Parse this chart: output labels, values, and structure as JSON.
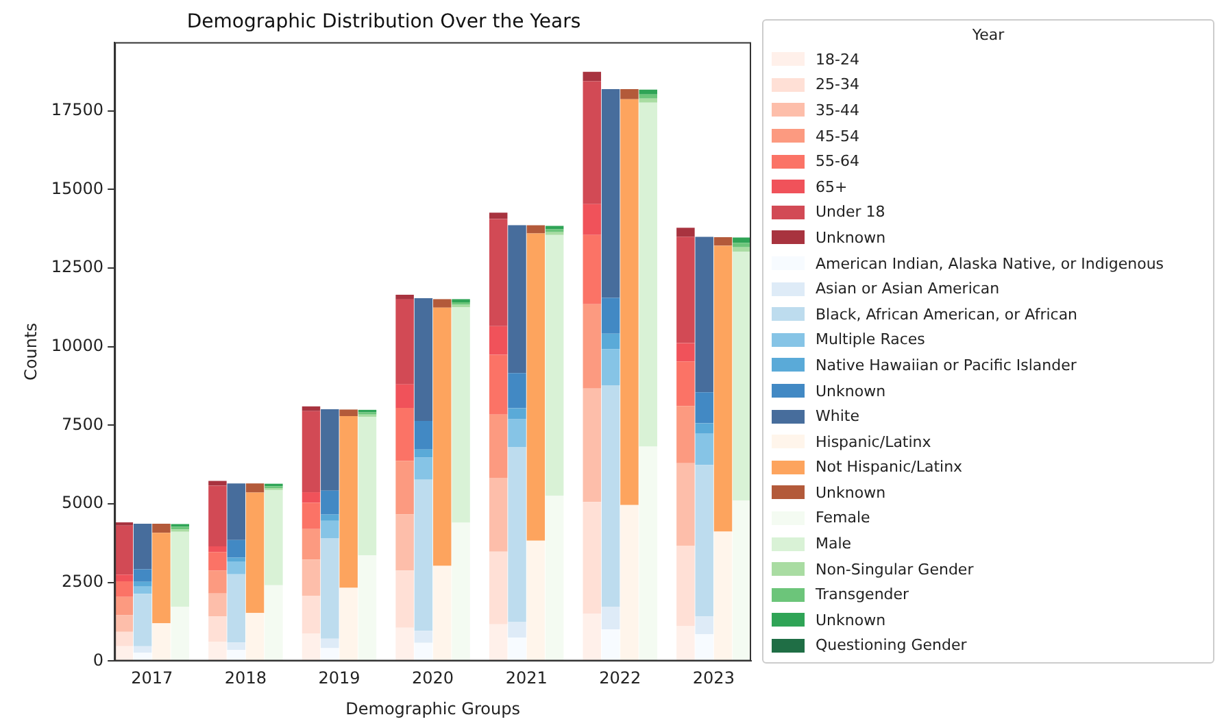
{
  "chart_data": {
    "type": "bar",
    "title": "Demographic Distribution Over the Years",
    "xlabel": "Demographic Groups",
    "ylabel": "Counts",
    "legend_title": "Year",
    "legend": "right",
    "grid": false,
    "stacked": true,
    "categories": [
      null,
      "2017",
      null,
      null,
      null,
      null,
      "2018",
      null,
      null,
      null,
      null,
      "2019",
      null,
      null,
      null,
      null,
      "2020",
      null,
      null,
      null,
      null,
      "2021",
      null,
      null,
      null,
      null,
      "2022",
      null,
      null,
      null,
      null,
      "2023",
      null,
      null
    ],
    "ylim": [
      0,
      19680
    ],
    "yticks": [
      0,
      2500,
      5000,
      7500,
      10000,
      12500,
      15000,
      17500
    ],
    "series": [
      {
        "name": "18-24",
        "color": "#fff0ea",
        "values": [
          470,
          null,
          null,
          null,
          null,
          620,
          null,
          null,
          null,
          null,
          880,
          null,
          null,
          null,
          null,
          1060,
          null,
          null,
          null,
          null,
          1170,
          null,
          null,
          null,
          null,
          1500,
          null,
          null,
          null,
          null,
          1120,
          null,
          null,
          null
        ]
      },
      {
        "name": "25-34",
        "color": "#ffe0d6",
        "values": [
          460,
          null,
          null,
          null,
          null,
          800,
          null,
          null,
          null,
          null,
          1200,
          null,
          null,
          null,
          null,
          1820,
          null,
          null,
          null,
          null,
          2310,
          null,
          null,
          null,
          null,
          3560,
          null,
          null,
          null,
          null,
          2550,
          null,
          null,
          null
        ]
      },
      {
        "name": "35-44",
        "color": "#fdbeaa",
        "values": [
          530,
          null,
          null,
          null,
          null,
          730,
          null,
          null,
          null,
          null,
          1150,
          null,
          null,
          null,
          null,
          1790,
          null,
          null,
          null,
          null,
          2350,
          null,
          null,
          null,
          null,
          3610,
          null,
          null,
          null,
          null,
          2620,
          null,
          null,
          null
        ]
      },
      {
        "name": "45-54",
        "color": "#fc9a80",
        "values": [
          580,
          null,
          null,
          null,
          null,
          730,
          null,
          null,
          null,
          null,
          970,
          null,
          null,
          null,
          null,
          1700,
          null,
          null,
          null,
          null,
          2010,
          null,
          null,
          null,
          null,
          2680,
          null,
          null,
          null,
          null,
          1820,
          null,
          null,
          null
        ]
      },
      {
        "name": "55-64",
        "color": "#fb7366",
        "values": [
          500,
          null,
          null,
          null,
          null,
          590,
          null,
          null,
          null,
          null,
          840,
          null,
          null,
          null,
          null,
          1680,
          null,
          null,
          null,
          null,
          1900,
          null,
          null,
          null,
          null,
          2200,
          null,
          null,
          null,
          null,
          1420,
          null,
          null,
          null
        ]
      },
      {
        "name": "65+",
        "color": "#f0525a",
        "values": [
          210,
          null,
          null,
          null,
          null,
          180,
          null,
          null,
          null,
          null,
          330,
          null,
          null,
          null,
          null,
          750,
          null,
          null,
          null,
          null,
          910,
          null,
          null,
          null,
          null,
          980,
          null,
          null,
          null,
          null,
          580,
          null,
          null,
          null
        ]
      },
      {
        "name": "Under 18",
        "color": "#d24a55",
        "values": [
          1560,
          null,
          null,
          null,
          null,
          1930,
          null,
          null,
          null,
          null,
          2580,
          null,
          null,
          null,
          null,
          2700,
          null,
          null,
          null,
          null,
          3410,
          null,
          null,
          null,
          null,
          3910,
          null,
          null,
          null,
          null,
          3380,
          null,
          null,
          null
        ]
      },
      {
        "name": "Unknown",
        "color": "#a8333f",
        "values": [
          100,
          null,
          null,
          null,
          null,
          150,
          null,
          null,
          null,
          null,
          150,
          null,
          null,
          null,
          null,
          150,
          null,
          null,
          null,
          null,
          200,
          null,
          null,
          null,
          null,
          300,
          null,
          null,
          null,
          null,
          290,
          null,
          null,
          null
        ]
      },
      {
        "name": "American Indian, Alaska Native, or Indigenous",
        "color": "#f7fbff",
        "values": [
          null,
          270,
          null,
          null,
          null,
          null,
          350,
          null,
          null,
          null,
          null,
          410,
          null,
          null,
          null,
          null,
          580,
          null,
          null,
          null,
          null,
          750,
          null,
          null,
          null,
          null,
          1010,
          null,
          null,
          null,
          null,
          860,
          null,
          null
        ]
      },
      {
        "name": "Asian or Asian American",
        "color": "#deebf7",
        "values": [
          null,
          200,
          null,
          null,
          null,
          null,
          240,
          null,
          null,
          null,
          null,
          300,
          null,
          null,
          null,
          null,
          380,
          null,
          null,
          null,
          null,
          500,
          null,
          null,
          null,
          null,
          710,
          null,
          null,
          null,
          null,
          560,
          null,
          null
        ]
      },
      {
        "name": "Black, African American, or African",
        "color": "#bddcee",
        "values": [
          null,
          1670,
          null,
          null,
          null,
          null,
          2170,
          null,
          null,
          null,
          null,
          3200,
          null,
          null,
          null,
          null,
          4810,
          null,
          null,
          null,
          null,
          5560,
          null,
          null,
          null,
          null,
          7050,
          null,
          null,
          null,
          null,
          4820,
          null,
          null
        ]
      },
      {
        "name": "Multiple Races",
        "color": "#86c4e6",
        "values": [
          null,
          230,
          null,
          null,
          null,
          null,
          410,
          null,
          null,
          null,
          null,
          550,
          null,
          null,
          null,
          null,
          700,
          null,
          null,
          null,
          null,
          880,
          null,
          null,
          null,
          null,
          1150,
          null,
          null,
          null,
          null,
          990,
          null,
          null
        ]
      },
      {
        "name": "Native Hawaiian or Pacific Islander",
        "color": "#5aaad8",
        "values": [
          null,
          150,
          null,
          null,
          null,
          null,
          120,
          null,
          null,
          null,
          null,
          200,
          null,
          null,
          null,
          null,
          260,
          null,
          null,
          null,
          null,
          350,
          null,
          null,
          null,
          null,
          490,
          null,
          null,
          null,
          null,
          330,
          null,
          null
        ]
      },
      {
        "name": "Unknown",
        "color": "#4289c4",
        "values": [
          null,
          400,
          null,
          null,
          null,
          null,
          560,
          null,
          null,
          null,
          null,
          760,
          null,
          null,
          null,
          null,
          910,
          null,
          null,
          null,
          null,
          1120,
          null,
          null,
          null,
          null,
          1140,
          null,
          null,
          null,
          null,
          990,
          null,
          null
        ]
      },
      {
        "name": "White",
        "color": "#476d9c",
        "values": [
          null,
          1450,
          null,
          null,
          null,
          null,
          1800,
          null,
          null,
          null,
          null,
          2590,
          null,
          null,
          null,
          null,
          3900,
          null,
          null,
          null,
          null,
          4700,
          null,
          null,
          null,
          null,
          6640,
          null,
          null,
          null,
          null,
          4940,
          null,
          null
        ]
      },
      {
        "name": "Hispanic/Latinx",
        "color": "#fff5eb",
        "values": [
          null,
          null,
          1200,
          null,
          null,
          null,
          null,
          1530,
          null,
          null,
          null,
          null,
          2330,
          null,
          null,
          null,
          null,
          3030,
          null,
          null,
          null,
          null,
          3830,
          null,
          null,
          null,
          null,
          4960,
          null,
          null,
          null,
          null,
          4120,
          null
        ]
      },
      {
        "name": "Not Hispanic/Latinx",
        "color": "#fda45e",
        "values": [
          null,
          null,
          2880,
          null,
          null,
          null,
          null,
          3830,
          null,
          null,
          null,
          null,
          5460,
          null,
          null,
          null,
          null,
          8210,
          null,
          null,
          null,
          null,
          9770,
          null,
          null,
          null,
          null,
          12910,
          null,
          null,
          null,
          null,
          9090,
          null
        ]
      },
      {
        "name": "Unknown",
        "color": "#b35a3a",
        "values": [
          null,
          null,
          290,
          null,
          null,
          null,
          null,
          290,
          null,
          null,
          null,
          null,
          210,
          null,
          null,
          null,
          null,
          270,
          null,
          null,
          null,
          null,
          260,
          null,
          null,
          null,
          null,
          320,
          null,
          null,
          null,
          null,
          270,
          null
        ]
      },
      {
        "name": "Female",
        "color": "#f4fbf2",
        "values": [
          null,
          null,
          null,
          1730,
          null,
          null,
          null,
          null,
          2410,
          null,
          null,
          null,
          null,
          3360,
          null,
          null,
          null,
          null,
          4400,
          null,
          null,
          null,
          null,
          5260,
          null,
          null,
          null,
          null,
          6820,
          null,
          null,
          null,
          null,
          5110
        ]
      },
      {
        "name": "Male",
        "color": "#d9f2d6",
        "values": [
          null,
          null,
          null,
          2380,
          null,
          null,
          null,
          null,
          3030,
          null,
          null,
          null,
          null,
          4410,
          null,
          null,
          null,
          null,
          6850,
          null,
          null,
          null,
          null,
          8290,
          null,
          null,
          null,
          null,
          10940,
          null,
          null,
          null,
          null,
          7910
        ]
      },
      {
        "name": "Non-Singular Gender",
        "color": "#a9dca2",
        "values": [
          null,
          null,
          null,
          80,
          null,
          null,
          null,
          null,
          60,
          null,
          null,
          null,
          null,
          70,
          null,
          null,
          null,
          null,
          80,
          null,
          null,
          null,
          null,
          90,
          null,
          null,
          null,
          null,
          130,
          null,
          null,
          null,
          null,
          140
        ]
      },
      {
        "name": "Transgender",
        "color": "#6cc57a",
        "values": [
          null,
          null,
          null,
          80,
          null,
          null,
          null,
          null,
          60,
          null,
          null,
          null,
          null,
          70,
          null,
          null,
          null,
          null,
          80,
          null,
          null,
          null,
          null,
          90,
          null,
          null,
          null,
          null,
          130,
          null,
          null,
          null,
          null,
          140
        ]
      },
      {
        "name": "Unknown",
        "color": "#2fa456",
        "values": [
          null,
          null,
          null,
          90,
          null,
          null,
          null,
          null,
          80,
          null,
          null,
          null,
          null,
          80,
          null,
          null,
          null,
          null,
          100,
          null,
          null,
          null,
          null,
          110,
          null,
          null,
          null,
          null,
          150,
          null,
          null,
          null,
          null,
          170
        ]
      },
      {
        "name": "Questioning Gender",
        "color": "#1f6e45",
        "values": [
          null,
          null,
          null,
          null,
          null,
          null,
          null,
          null,
          null,
          null,
          null,
          null,
          null,
          null,
          null,
          null,
          null,
          null,
          null,
          null,
          null,
          null,
          null,
          null,
          null,
          null,
          null,
          null,
          null,
          null,
          null,
          null,
          null,
          null
        ]
      }
    ]
  }
}
